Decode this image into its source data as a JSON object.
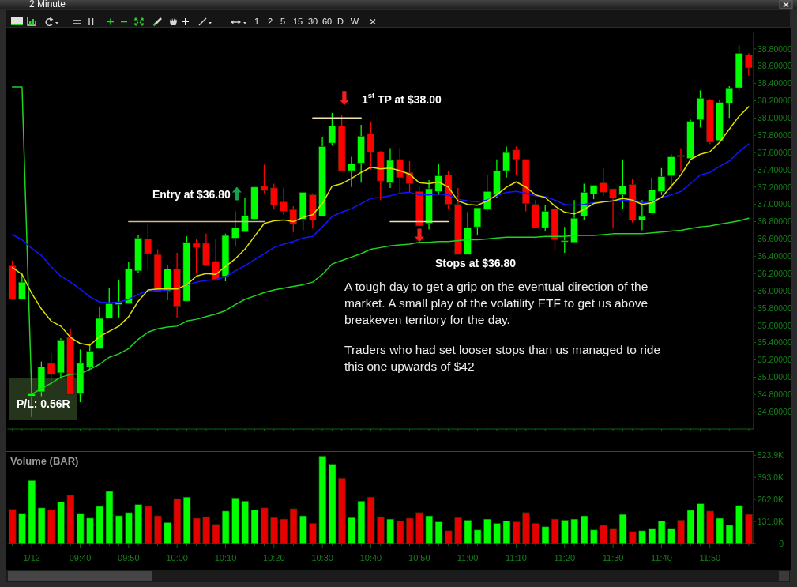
{
  "chart_data": [
    {
      "type": "candlestick",
      "title": "2 Minute",
      "categories": [
        null,
        null,
        null,
        null,
        null,
        null,
        null,
        null,
        null,
        null,
        null,
        null,
        null,
        null,
        null,
        null,
        null,
        null,
        null,
        null,
        null,
        null,
        null,
        null,
        null,
        null,
        null,
        null,
        null,
        null,
        null,
        null,
        null,
        null,
        null,
        null,
        null,
        null,
        null,
        null,
        null,
        null,
        null,
        null,
        null,
        null,
        null,
        null,
        null,
        null,
        null,
        null,
        null,
        null,
        null,
        null,
        null,
        null,
        null,
        null,
        null,
        null,
        null,
        null,
        null,
        null,
        null,
        null,
        null,
        null,
        null,
        null,
        null,
        null,
        null,
        null,
        null
      ],
      "ohlc": [
        [
          36.29,
          36.35,
          35.9,
          35.9
        ],
        [
          35.9,
          36.21,
          35.9,
          36.1
        ],
        [
          34.78,
          35.06,
          34.54,
          34.81
        ],
        [
          34.83,
          35.18,
          34.78,
          35.12
        ],
        [
          35.16,
          35.28,
          34.88,
          35.03
        ],
        [
          35.05,
          35.45,
          34.98,
          35.43
        ],
        [
          35.46,
          35.56,
          34.8,
          34.8
        ],
        [
          34.81,
          35.32,
          34.71,
          35.16
        ],
        [
          35.12,
          35.39,
          35.09,
          35.3
        ],
        [
          35.33,
          35.81,
          35.33,
          35.68
        ],
        [
          35.68,
          36.03,
          35.68,
          35.85
        ],
        [
          35.84,
          36.12,
          35.69,
          35.87
        ],
        [
          35.85,
          36.33,
          35.85,
          36.25
        ],
        [
          36.23,
          36.64,
          36.21,
          36.61
        ],
        [
          36.6,
          36.78,
          36.24,
          36.43
        ],
        [
          36.42,
          36.48,
          35.99,
          35.99
        ],
        [
          36.0,
          36.3,
          35.89,
          36.25
        ],
        [
          36.25,
          36.44,
          35.68,
          35.82
        ],
        [
          35.88,
          36.63,
          35.88,
          36.56
        ],
        [
          36.55,
          36.6,
          36.21,
          36.5
        ],
        [
          36.55,
          36.66,
          36.29,
          36.29
        ],
        [
          36.34,
          36.6,
          36.12,
          36.12
        ],
        [
          36.17,
          36.66,
          36.11,
          36.64
        ],
        [
          36.61,
          36.92,
          36.51,
          36.73
        ],
        [
          36.68,
          37.08,
          36.68,
          36.87
        ],
        [
          36.83,
          37.2,
          36.83,
          37.2
        ],
        [
          37.21,
          37.46,
          37.13,
          37.16
        ],
        [
          37.19,
          37.24,
          36.94,
          36.99
        ],
        [
          37.03,
          37.19,
          36.88,
          36.92
        ],
        [
          36.94,
          36.98,
          36.68,
          36.77
        ],
        [
          36.83,
          37.14,
          36.7,
          37.14
        ],
        [
          37.11,
          37.13,
          36.72,
          36.82
        ],
        [
          36.86,
          37.78,
          36.86,
          37.67
        ],
        [
          37.71,
          38.06,
          37.68,
          37.91
        ],
        [
          37.91,
          38.04,
          37.39,
          37.39
        ],
        [
          37.39,
          37.55,
          37.2,
          37.47
        ],
        [
          37.48,
          37.92,
          37.25,
          37.79
        ],
        [
          37.82,
          37.96,
          37.4,
          37.6
        ],
        [
          37.61,
          37.62,
          37.05,
          37.27
        ],
        [
          37.25,
          37.65,
          37.19,
          37.51
        ],
        [
          37.52,
          37.65,
          37.13,
          37.31
        ],
        [
          37.37,
          37.5,
          37.14,
          37.24
        ],
        [
          37.15,
          37.2,
          36.75,
          36.75
        ],
        [
          36.78,
          37.28,
          36.71,
          37.18
        ],
        [
          37.15,
          37.47,
          37.11,
          37.33
        ],
        [
          37.34,
          37.39,
          36.94,
          37.0
        ],
        [
          37.0,
          37.19,
          36.42,
          36.42
        ],
        [
          36.42,
          36.91,
          36.42,
          36.73
        ],
        [
          36.74,
          36.96,
          36.64,
          36.96
        ],
        [
          36.94,
          37.34,
          36.92,
          37.15
        ],
        [
          37.11,
          37.52,
          37.07,
          37.39
        ],
        [
          37.39,
          37.67,
          37.31,
          37.6
        ],
        [
          37.63,
          37.67,
          37.34,
          37.52
        ],
        [
          37.52,
          37.52,
          36.92,
          37.01
        ],
        [
          37.0,
          37.05,
          36.73,
          36.73
        ],
        [
          36.73,
          36.99,
          36.69,
          36.92
        ],
        [
          36.95,
          36.95,
          36.46,
          36.59
        ],
        [
          36.57,
          36.74,
          36.44,
          36.58
        ],
        [
          36.56,
          37.05,
          36.56,
          36.84
        ],
        [
          36.86,
          37.24,
          36.82,
          37.14
        ],
        [
          37.12,
          37.22,
          37.06,
          37.22
        ],
        [
          37.25,
          37.42,
          37.1,
          37.14
        ],
        [
          37.18,
          37.18,
          36.72,
          37.07
        ],
        [
          37.11,
          37.52,
          36.95,
          37.21
        ],
        [
          37.23,
          37.3,
          36.79,
          36.82
        ],
        [
          36.82,
          37.05,
          36.7,
          36.86
        ],
        [
          36.9,
          37.31,
          36.9,
          37.17
        ],
        [
          37.15,
          37.42,
          37.11,
          37.32
        ],
        [
          37.33,
          37.58,
          37.18,
          37.55
        ],
        [
          37.57,
          37.65,
          37.38,
          37.55
        ],
        [
          37.53,
          37.98,
          37.52,
          37.96
        ],
        [
          37.98,
          38.32,
          37.89,
          38.23
        ],
        [
          38.21,
          38.22,
          37.7,
          37.72
        ],
        [
          37.74,
          38.21,
          37.74,
          38.18
        ],
        [
          38.17,
          38.37,
          38.0,
          38.34
        ],
        [
          38.35,
          38.84,
          38.32,
          38.75
        ],
        [
          38.73,
          38.75,
          38.49,
          38.58
        ]
      ],
      "colors": [
        "#ff0000",
        "#00ff00",
        "#00ff00",
        "#00ff00",
        "#ff0000",
        "#00ff00",
        "#ff0000",
        "#00ff00",
        "#00ff00",
        "#00ff00",
        "#00ff00",
        "#00ff00",
        "#00ff00",
        "#00ff00",
        "#ff0000",
        "#ff0000",
        "#00ff00",
        "#ff0000",
        "#00ff00",
        "#ff0000",
        "#ff0000",
        "#ff0000",
        "#00ff00",
        "#00ff00",
        "#00ff00",
        "#00ff00",
        "#ff0000",
        "#ff0000",
        "#ff0000",
        "#ff0000",
        "#00ff00",
        "#ff0000",
        "#00ff00",
        "#00ff00",
        "#ff0000",
        "#00ff00",
        "#00ff00",
        "#ff0000",
        "#ff0000",
        "#00ff00",
        "#ff0000",
        "#ff0000",
        "#ff0000",
        "#00ff00",
        "#00ff00",
        "#ff0000",
        "#ff0000",
        "#00ff00",
        "#00ff00",
        "#00ff00",
        "#00ff00",
        "#00ff00",
        "#ff0000",
        "#ff0000",
        "#ff0000",
        "#00ff00",
        "#ff0000",
        "#00ff00",
        "#00ff00",
        "#00ff00",
        "#00ff00",
        "#ff0000",
        "#ff0000",
        "#00ff00",
        "#ff0000",
        "#00ff00",
        "#00ff00",
        "#00ff00",
        "#00ff00",
        "#ff0000",
        "#00ff00",
        "#00ff00",
        "#ff0000",
        "#00ff00",
        "#00ff00",
        "#00ff00",
        "#ff0000"
      ],
      "series": [
        {
          "type": "line",
          "color": "#1ed41e",
          "values": [
            38.36,
            38.36,
            34.8,
            34.87,
            34.93,
            35.0,
            35.03,
            35.04,
            35.09,
            35.15,
            35.23,
            35.27,
            35.33,
            35.44,
            35.52,
            35.56,
            35.58,
            35.59,
            35.65,
            35.67,
            35.7,
            35.73,
            35.77,
            35.84,
            35.9,
            35.94,
            35.98,
            36.01,
            36.03,
            36.05,
            36.07,
            36.1,
            36.19,
            36.31,
            36.35,
            36.39,
            36.43,
            36.48,
            36.5,
            36.52,
            36.53,
            36.54,
            36.56,
            36.56,
            36.57,
            36.57,
            36.58,
            36.59,
            36.59,
            36.6,
            36.61,
            36.62,
            36.62,
            36.62,
            36.62,
            36.63,
            36.63,
            36.63,
            36.64,
            36.64,
            36.64,
            36.65,
            36.66,
            36.66,
            36.66,
            36.66,
            36.67,
            36.68,
            36.69,
            36.7,
            36.72,
            36.74,
            36.75,
            36.77,
            36.79,
            36.81,
            36.84
          ]
        },
        {
          "type": "line",
          "color": "#1414ff",
          "values": [
            36.65,
            36.59,
            36.49,
            36.41,
            36.28,
            36.17,
            36.1,
            36.02,
            35.93,
            35.87,
            35.86,
            35.87,
            35.9,
            35.96,
            36.0,
            36.0,
            36.01,
            36.02,
            36.07,
            36.1,
            36.12,
            36.13,
            36.16,
            36.23,
            36.29,
            36.36,
            36.43,
            36.5,
            36.54,
            36.57,
            36.61,
            36.63,
            36.74,
            36.86,
            36.91,
            36.95,
            37.01,
            37.07,
            37.08,
            37.1,
            37.13,
            37.14,
            37.11,
            37.11,
            37.12,
            37.11,
            37.06,
            37.04,
            37.03,
            37.05,
            37.1,
            37.14,
            37.15,
            37.13,
            37.1,
            37.09,
            37.05,
            37.0,
            36.99,
            37.0,
            37.02,
            37.03,
            37.04,
            37.05,
            37.05,
            37.02,
            37.03,
            37.08,
            37.11,
            37.15,
            37.24,
            37.34,
            37.37,
            37.44,
            37.5,
            37.61,
            37.7
          ]
        },
        {
          "type": "line",
          "color": "#e0e000",
          "values": [
            36.27,
            36.19,
            35.97,
            35.79,
            35.65,
            35.59,
            35.46,
            35.39,
            35.37,
            35.47,
            35.53,
            35.59,
            35.7,
            35.88,
            36.01,
            36.02,
            36.02,
            36.02,
            36.07,
            36.17,
            36.2,
            36.19,
            36.28,
            36.37,
            36.48,
            36.63,
            36.78,
            36.81,
            36.82,
            36.8,
            36.85,
            36.88,
            37.01,
            37.21,
            37.24,
            37.3,
            37.37,
            37.43,
            37.41,
            37.42,
            37.39,
            37.35,
            37.25,
            37.24,
            37.26,
            37.2,
            37.04,
            37.0,
            36.99,
            37.04,
            37.11,
            37.2,
            37.26,
            37.2,
            37.11,
            37.08,
            36.98,
            36.91,
            36.89,
            36.94,
            37.01,
            37.03,
            37.04,
            37.07,
            37.05,
            37.0,
            37.02,
            37.08,
            37.21,
            37.34,
            37.52,
            37.58,
            37.61,
            37.72,
            37.87,
            38.02,
            38.13
          ]
        },
        {
          "type": "line",
          "color": "#cdbb8a",
          "values": [
            null,
            null,
            null,
            null,
            null,
            null,
            null,
            null,
            null,
            null,
            null,
            null,
            36.8,
            36.8,
            36.8,
            36.8,
            36.8,
            36.8,
            36.8,
            36.8,
            36.8,
            36.8,
            36.8,
            36.8,
            36.8,
            36.8,
            36.8,
            null,
            null,
            null,
            null,
            null,
            null,
            null,
            null,
            null,
            null,
            null,
            null,
            null,
            null,
            null,
            null,
            null,
            null,
            null,
            null,
            null,
            null,
            null,
            null,
            null,
            null,
            null,
            null,
            null,
            null,
            null,
            null,
            null,
            null,
            null,
            null,
            null,
            null,
            null,
            null,
            null,
            null,
            null,
            null,
            null,
            null,
            null,
            null,
            null,
            null
          ]
        },
        {
          "type": "line",
          "color": "#f0e6b0",
          "values": [
            null,
            null,
            null,
            null,
            null,
            null,
            null,
            null,
            null,
            null,
            null,
            null,
            null,
            null,
            null,
            null,
            null,
            null,
            null,
            null,
            null,
            null,
            null,
            null,
            null,
            null,
            null,
            null,
            null,
            null,
            null,
            38,
            38,
            38,
            38,
            38,
            38,
            null,
            null,
            null,
            null,
            null,
            null,
            null,
            null,
            null,
            null,
            null,
            null,
            null,
            null,
            null,
            null,
            null,
            null,
            null,
            null,
            null,
            null,
            null,
            null,
            null,
            null,
            null,
            null,
            null,
            null,
            null,
            null,
            null,
            null,
            null,
            null,
            null,
            null,
            null,
            null
          ]
        },
        {
          "type": "line",
          "color": "#f0e6b0",
          "values": [
            null,
            null,
            null,
            null,
            null,
            null,
            null,
            null,
            null,
            null,
            null,
            null,
            null,
            null,
            null,
            null,
            null,
            null,
            null,
            null,
            null,
            null,
            null,
            null,
            null,
            null,
            null,
            null,
            null,
            null,
            null,
            null,
            null,
            null,
            null,
            null,
            null,
            null,
            null,
            36.8,
            36.8,
            36.8,
            36.8,
            36.8,
            36.8,
            36.8,
            null,
            null,
            null,
            null,
            null,
            null,
            null,
            null,
            null,
            null,
            null,
            null,
            null,
            null,
            null,
            null,
            null,
            null,
            null,
            null,
            null,
            null,
            null,
            null,
            null,
            null,
            null,
            null,
            null,
            null,
            null
          ]
        }
      ],
      "ylim": [
        34.4,
        39.0
      ],
      "yticks": [
        {
          "value": 34.6,
          "label": "34.60000"
        },
        {
          "value": 34.8,
          "label": "34.80000"
        },
        {
          "value": 35,
          "label": "35.00000"
        },
        {
          "value": 35.2,
          "label": "35.20000"
        },
        {
          "value": 35.4,
          "label": "35.40000"
        },
        {
          "value": 35.6,
          "label": "35.60000"
        },
        {
          "value": 35.8,
          "label": "35.80000"
        },
        {
          "value": 36,
          "label": "36.00000"
        },
        {
          "value": 36.2,
          "label": "36.20000"
        },
        {
          "value": 36.4,
          "label": "36.40000"
        },
        {
          "value": 36.6,
          "label": "36.60000"
        },
        {
          "value": 36.8,
          "label": "36.80000"
        },
        {
          "value": 37,
          "label": "37.00000"
        },
        {
          "value": 37.2,
          "label": "37.20000"
        },
        {
          "value": 37.4,
          "label": "37.40000"
        },
        {
          "value": 37.6,
          "label": "37.60000"
        },
        {
          "value": 37.8,
          "label": "37.80000"
        },
        {
          "value": 38,
          "label": "38.00000"
        },
        {
          "value": 38.2,
          "label": "38.20000"
        },
        {
          "value": 38.4,
          "label": "38.40000"
        },
        {
          "value": 38.6,
          "label": "38.60000"
        },
        {
          "value": 38.8,
          "label": "38.80000"
        }
      ],
      "annotations": [
        {
          "text": "Entry at $36.80",
          "y": 36.8
        },
        "1$^{st}$ TP at $38.00",
        "Stops at $36.80",
        "A tough day to get a grip on the eventual direction of the market. A small play of the volatility ETF to get us above breakeven territory for the day.",
        "Traders who had set looser stops than us managed to ride this one upwards of $42",
        "P/L: 0.56R",
        "1",
        "2",
        "5",
        "15",
        "30",
        "60",
        "D",
        "W"
      ]
    },
    {
      "type": "bar",
      "title": "Volume (BAR)",
      "categories": [
        null,
        null,
        "1/12",
        null,
        null,
        null,
        null,
        "09:40",
        null,
        null,
        null,
        null,
        "09:50",
        null,
        null,
        null,
        null,
        "10:00",
        null,
        null,
        null,
        null,
        "10:10",
        null,
        null,
        null,
        null,
        "10:20",
        null,
        null,
        null,
        null,
        "10:30",
        null,
        null,
        null,
        null,
        "10:40",
        null,
        null,
        null,
        null,
        "10:50",
        null,
        null,
        null,
        null,
        "11:00",
        null,
        null,
        null,
        null,
        "11:10",
        null,
        null,
        null,
        null,
        "11:20",
        null,
        null,
        null,
        null,
        "11:30",
        null,
        null,
        null,
        null,
        "11:40",
        null,
        null,
        null,
        null,
        "11:50",
        null,
        null,
        null,
        null
      ],
      "values": [
        203,
        179,
        374,
        212,
        199,
        248,
        287,
        179,
        151,
        221,
        310,
        165,
        184,
        232,
        221,
        164,
        125,
        267,
        276,
        150,
        159,
        114,
        193,
        271,
        252,
        199,
        212,
        154,
        145,
        207,
        164,
        120,
        519,
        471,
        388,
        154,
        252,
        276,
        159,
        145,
        134,
        150,
        184,
        164,
        129,
        76,
        154,
        139,
        81,
        145,
        120,
        134,
        129,
        184,
        120,
        100,
        145,
        139,
        145,
        164,
        81,
        109,
        90,
        173,
        71,
        76,
        90,
        134,
        90,
        139,
        198,
        237,
        193,
        150,
        109,
        226,
        173
      ],
      "colors": [
        "#e60000",
        "#00ff00",
        "#00ff00",
        "#00ff00",
        "#e60000",
        "#00ff00",
        "#e60000",
        "#00ff00",
        "#00ff00",
        "#00ff00",
        "#00ff00",
        "#00ff00",
        "#00ff00",
        "#00ff00",
        "#e60000",
        "#e60000",
        "#00ff00",
        "#e60000",
        "#00ff00",
        "#e60000",
        "#e60000",
        "#e60000",
        "#00ff00",
        "#00ff00",
        "#00ff00",
        "#00ff00",
        "#e60000",
        "#e60000",
        "#e60000",
        "#e60000",
        "#00ff00",
        "#e60000",
        "#00ff00",
        "#00ff00",
        "#e60000",
        "#00ff00",
        "#00ff00",
        "#e60000",
        "#e60000",
        "#00ff00",
        "#e60000",
        "#e60000",
        "#e60000",
        "#00ff00",
        "#00ff00",
        "#e60000",
        "#e60000",
        "#00ff00",
        "#00ff00",
        "#00ff00",
        "#00ff00",
        "#00ff00",
        "#e60000",
        "#e60000",
        "#e60000",
        "#00ff00",
        "#e60000",
        "#00ff00",
        "#00ff00",
        "#00ff00",
        "#00ff00",
        "#e60000",
        "#e60000",
        "#00ff00",
        "#e60000",
        "#00ff00",
        "#00ff00",
        "#00ff00",
        "#00ff00",
        "#e60000",
        "#00ff00",
        "#00ff00",
        "#e60000",
        "#00ff00",
        "#00ff00",
        "#00ff00",
        "#e60000"
      ],
      "ylim": [
        0,
        544
      ],
      "yticks": [
        0,
        {
          "value": 131,
          "label": "131.0K"
        },
        {
          "value": 262,
          "label": "262.0K"
        },
        {
          "value": 393,
          "label": "393.0K"
        },
        {
          "value": 523.9,
          "label": "523.9K"
        }
      ]
    }
  ]
}
